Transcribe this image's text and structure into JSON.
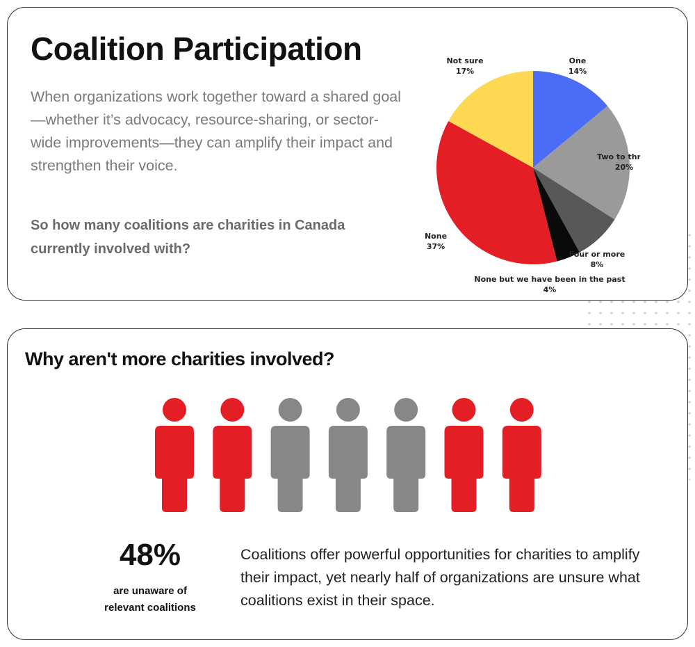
{
  "top": {
    "title": "Coalition Participation",
    "intro": "When organizations work together toward a shared goal—whether it’s advocacy, resource-sharing, or sector-wide improvements—they can amplify their impact and strengthen their voice.",
    "question": "So how many coalitions are charities in Canada currently involved with?"
  },
  "chart_data": {
    "type": "pie",
    "title": "",
    "slices": [
      {
        "label": "One",
        "value": 14,
        "display": "14%",
        "color": "#4a6cf7"
      },
      {
        "label": "Two to three",
        "value": 20,
        "display": "20%",
        "color": "#9a9a9a"
      },
      {
        "label": "Four or more",
        "value": 8,
        "display": "8%",
        "color": "#585858"
      },
      {
        "label": "None but we have been in the past",
        "value": 4,
        "display": "4%",
        "color": "#0a0a0a"
      },
      {
        "label": "None",
        "value": 37,
        "display": "37%",
        "color": "#e41e25"
      },
      {
        "label": "Not sure",
        "value": 17,
        "display": "17%",
        "color": "#fcd853"
      }
    ]
  },
  "bottom": {
    "title": "Why aren't more charities involved?",
    "people": [
      "red",
      "red",
      "gray",
      "gray",
      "gray",
      "red",
      "red"
    ],
    "colors": {
      "red": "#e41e25",
      "gray": "#878787"
    },
    "stat": "48%",
    "stat_label": "are unaware of relevant coalitions",
    "description": "Coalitions offer powerful opportunities for charities to amplify their impact, yet nearly half of organizations are unsure what coalitions exist in their space."
  }
}
